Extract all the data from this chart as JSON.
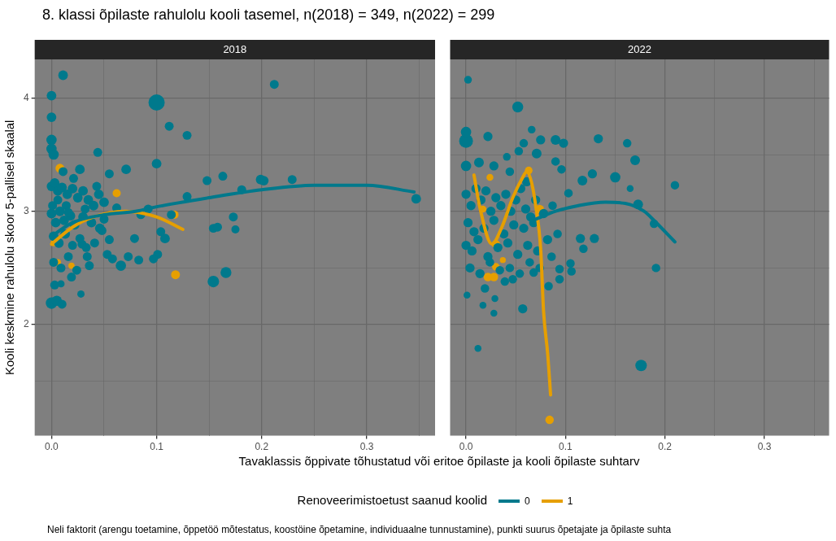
{
  "chart_data": [
    {
      "type": "bubble",
      "title": "8. klassi õpilaste rahulolu kooli tasemel, n(2018) = 349, n(2022) = 299",
      "subtitle": "2018",
      "xlabel": "Tavaklassis õppivate tõhustatud või eritoe õpilaste ja kooli õpilaste suhtarv",
      "ylabel": "Kooli keskmine rahulolu skoor 5-pallisel skaalal",
      "legend_title": "Renoveerimistoetust saanud koolid",
      "legend": "bottom",
      "grid": true,
      "xlim": [
        -0.016,
        0.365
      ],
      "xticks": [
        {
          "value": 0,
          "label": "0.0"
        },
        {
          "value": 0.05,
          "label": null
        },
        0.1,
        {
          "value": 0.15,
          "label": null
        },
        0.2,
        {
          "value": 0.25,
          "label": null
        },
        0.3,
        {
          "value": 0.35,
          "label": null
        }
      ],
      "ylim": [
        1.02,
        4.34
      ],
      "yticks": [
        {
          "value": 1.5,
          "label": null
        },
        2,
        {
          "value": 2.5,
          "label": null
        },
        3,
        {
          "value": 3.5,
          "label": null
        },
        4
      ],
      "annotations": [
        "Neli faktorit (arengu toetamine, õppetöö mõtestatus, koostöine õpetamine, individuaalne tunnustamine), punkti suurus õpetajate ja õpilaste suhta"
      ],
      "series": [
        {
          "color": "#00798c",
          "x": [
            0.011,
            0,
            0,
            0,
            0,
            0.002,
            0.1,
            0.112,
            0.129,
            0.212,
            0.044,
            0.1,
            0.027,
            0.071,
            0.055,
            0.148,
            0.163,
            0.199,
            0.181,
            0.129,
            0.173,
            0.154,
            0.158,
            0.175,
            0.114,
            0.104,
            0.108,
            0.079,
            0.055,
            0.101,
            0.083,
            0.066,
            0.073,
            0.154,
            0.166,
            0.097,
            0.029,
            0.034,
            0.053,
            0.058,
            0,
            0.005,
            0.01,
            0.028,
            0.009,
            0.202,
            0.229,
            0.347,
            0,
            0.003,
            0.006,
            0.01,
            0.015,
            0.02,
            0.025,
            0.03,
            0.035,
            0.04,
            0.045,
            0.05,
            0,
            0.004,
            0.008,
            0.012,
            0.018,
            0.022,
            0.03,
            0.038,
            0.046,
            0.002,
            0.007,
            0.013,
            0.02,
            0.027,
            0.033,
            0.041,
            0.002,
            0.009,
            0.016,
            0.024,
            0.036,
            0.001,
            0.006,
            0.014,
            0.019,
            0.003,
            0.011,
            0.016,
            0.043,
            0.062,
            0.05,
            0.085,
            0.092,
            0.021,
            0.032,
            0.048
          ],
          "values": [
            4.2,
            4.02,
            3.83,
            3.63,
            3.55,
            3.5,
            3.96,
            3.75,
            3.67,
            4.12,
            3.52,
            3.42,
            3.37,
            3.37,
            3.33,
            3.27,
            3.31,
            3.28,
            3.19,
            3.13,
            2.95,
            2.85,
            2.86,
            2.84,
            2.97,
            2.82,
            2.76,
            2.76,
            2.75,
            2.62,
            2.57,
            2.52,
            2.6,
            2.38,
            2.46,
            2.58,
            2.71,
            2.6,
            2.62,
            2.58,
            2.19,
            2.21,
            2.18,
            2.27,
            2.36,
            3.27,
            3.28,
            3.11,
            3.22,
            3.25,
            3.18,
            3.21,
            3.15,
            3.2,
            3.12,
            3.18,
            3.1,
            3.05,
            3.15,
            3.08,
            2.98,
            2.9,
            3,
            2.92,
            2.96,
            2.88,
            2.95,
            2.9,
            2.85,
            2.78,
            2.72,
            2.8,
            2.7,
            2.76,
            2.68,
            2.72,
            2.55,
            2.5,
            2.6,
            2.48,
            2.52,
            3.05,
            3.1,
            3.05,
            2.42,
            2.35,
            3.35,
            2.99,
            3.22,
            3.03,
            2.93,
            2.97,
            3.02,
            3.29,
            3.02,
            2.83
          ],
          "sizes": [
            0.35,
            0.35,
            0.35,
            0.4,
            0.4,
            0.4,
            1,
            0.3,
            0.3,
            0.3,
            0.3,
            0.35,
            0.35,
            0.35,
            0.3,
            0.3,
            0.3,
            0.35,
            0.3,
            0.3,
            0.3,
            0.3,
            0.3,
            0.25,
            0.3,
            0.3,
            0.35,
            0.3,
            0.3,
            0.3,
            0.3,
            0.4,
            0.3,
            0.5,
            0.45,
            0.3,
            0.3,
            0.3,
            0.3,
            0.3,
            0.5,
            0.4,
            0.3,
            0.2,
            0.2,
            0.35,
            0.3,
            0.35,
            0.35,
            0.35,
            0.35,
            0.35,
            0.35,
            0.35,
            0.35,
            0.35,
            0.35,
            0.35,
            0.35,
            0.35,
            0.35,
            0.35,
            0.35,
            0.35,
            0.35,
            0.35,
            0.35,
            0.35,
            0.35,
            0.35,
            0.35,
            0.35,
            0.3,
            0.3,
            0.3,
            0.3,
            0.3,
            0.3,
            0.3,
            0.3,
            0.3,
            0.3,
            0.3,
            0.3,
            0.3,
            0.3,
            0.3,
            0.3,
            0.3,
            0.3,
            0.3,
            0.3,
            0.3,
            0.3,
            0.3,
            0.3
          ]
        },
        {
          "color": "#e69f00",
          "x": [
            0.008,
            0.062,
            0.117,
            0.118,
            0.002,
            0.006,
            0.019
          ],
          "values": [
            3.38,
            3.16,
            2.97,
            2.44,
            2.72,
            2.55,
            2.52
          ],
          "sizes": [
            0.3,
            0.25,
            0.25,
            0.3,
            0.15,
            0.15,
            0.15
          ]
        },
        {
          "type": "line",
          "name": "0",
          "color": "#00798c",
          "x": [
            0,
            0.02,
            0.05,
            0.08,
            0.1,
            0.15,
            0.2,
            0.25,
            0.3,
            0.345
          ],
          "values": [
            2.78,
            2.9,
            2.97,
            3,
            3.04,
            3.12,
            3.19,
            3.23,
            3.23,
            3.17
          ]
        },
        {
          "type": "line",
          "name": "1",
          "color": "#e69f00",
          "x": [
            0,
            0.02,
            0.04,
            0.07,
            0.1,
            0.125
          ],
          "values": [
            2.71,
            2.86,
            2.95,
            3,
            2.95,
            2.84
          ]
        }
      ]
    },
    {
      "type": "bubble",
      "subtitle": "2022",
      "grid": true,
      "tick_labels": "x",
      "xlim": [
        -0.016,
        0.365
      ],
      "xticks": [
        {
          "value": 0,
          "label": "0.0"
        },
        {
          "value": 0.05,
          "label": null
        },
        0.1,
        {
          "value": 0.15,
          "label": null
        },
        0.2,
        {
          "value": 0.25,
          "label": null
        },
        0.3,
        {
          "value": 0.35,
          "label": null
        }
      ],
      "ylim": [
        1.02,
        4.34
      ],
      "yticks": [
        {
          "value": 1.5,
          "label": null
        },
        2,
        {
          "value": 2.5,
          "label": null
        },
        3,
        {
          "value": 3.5,
          "label": null
        },
        4
      ],
      "series": [
        {
          "color": "#00798c",
          "x": [
            0.002,
            0,
            0,
            0.022,
            0.052,
            0.066,
            0.075,
            0.09,
            0.098,
            0.133,
            0.162,
            0.17,
            0.071,
            0.09,
            0.053,
            0.058,
            0.041,
            0,
            0.013,
            0.028,
            0.044,
            0.061,
            0.15,
            0.165,
            0.21,
            0.173,
            0.189,
            0.191,
            0.117,
            0.127,
            0.096,
            0.103,
            0.087,
            0.115,
            0.129,
            0.118,
            0.105,
            0.106,
            0.094,
            0.094,
            0.083,
            0.057,
            0.029,
            0.017,
            0.028,
            0.001,
            0.012,
            0.176,
            0,
            0.005,
            0.01,
            0.015,
            0.02,
            0.025,
            0.03,
            0.035,
            0.04,
            0.045,
            0.05,
            0.055,
            0.06,
            0.065,
            0.07,
            0.002,
            0.008,
            0.018,
            0.028,
            0.038,
            0.048,
            0.058,
            0.068,
            0.078,
            0,
            0.006,
            0.012,
            0.022,
            0.032,
            0.042,
            0.052,
            0.062,
            0.072,
            0.082,
            0.004,
            0.014,
            0.024,
            0.034,
            0.044,
            0.054,
            0.064,
            0.074,
            0.019,
            0.039,
            0.086,
            0.092,
            0.047,
            0.068
          ],
          "values": [
            4.16,
            3.62,
            3.7,
            3.66,
            3.92,
            3.72,
            3.63,
            3.63,
            3.6,
            3.64,
            3.6,
            3.45,
            3.51,
            3.44,
            3.53,
            3.6,
            3.48,
            3.4,
            3.43,
            3.4,
            3.35,
            3.26,
            3.3,
            3.2,
            3.23,
            3.06,
            2.89,
            2.5,
            3.27,
            3.33,
            3.37,
            3.16,
            3.05,
            2.76,
            2.76,
            2.67,
            2.54,
            2.47,
            2.49,
            2.4,
            2.34,
            2.14,
            2.23,
            2.17,
            2.1,
            2.26,
            1.79,
            1.64,
            3.15,
            3.05,
            3.2,
            3.1,
            3.18,
            3,
            3.12,
            3.05,
            3.15,
            3,
            3.1,
            3.2,
            3.02,
            2.95,
            3.1,
            2.9,
            2.82,
            2.85,
            2.92,
            2.8,
            2.88,
            2.85,
            2.9,
            2.98,
            2.7,
            2.65,
            2.75,
            2.6,
            2.68,
            2.72,
            2.62,
            2.7,
            2.65,
            2.75,
            2.5,
            2.45,
            2.55,
            2.48,
            2.5,
            2.45,
            2.55,
            2.5,
            2.32,
            2.38,
            2.6,
            2.8,
            2.4,
            2.46
          ],
          "sizes": [
            0.31,
            1,
            0.56,
            0.44,
            0.63,
            0.31,
            0.44,
            0.5,
            0.44,
            0.44,
            0.38,
            0.5,
            0.5,
            0.38,
            0.38,
            0.38,
            0.31,
            0.56,
            0.5,
            0.44,
            0.38,
            0.44,
            0.56,
            0.25,
            0.38,
            0.5,
            0.38,
            0.38,
            0.5,
            0.44,
            0.38,
            0.38,
            0.38,
            0.44,
            0.44,
            0.38,
            0.38,
            0.38,
            0.38,
            0.38,
            0.38,
            0.44,
            0.25,
            0.25,
            0.25,
            0.25,
            0.25,
            0.69,
            0.44,
            0.44,
            0.44,
            0.44,
            0.44,
            0.44,
            0.44,
            0.44,
            0.44,
            0.44,
            0.44,
            0.44,
            0.44,
            0.44,
            0.44,
            0.44,
            0.44,
            0.44,
            0.44,
            0.44,
            0.44,
            0.44,
            0.44,
            0.44,
            0.44,
            0.44,
            0.44,
            0.44,
            0.44,
            0.44,
            0.44,
            0.44,
            0.44,
            0.44,
            0.44,
            0.44,
            0.38,
            0.38,
            0.38,
            0.38,
            0.38,
            0.38,
            0.38,
            0.38,
            0.38,
            0.38,
            0.38,
            0.38
          ]
        },
        {
          "color": "#e69f00",
          "x": [
            0.024,
            0.063,
            0.074,
            0.017,
            0.03,
            0.03,
            0.022,
            0.028,
            0.037,
            0.084
          ],
          "values": [
            3.3,
            3.36,
            3.02,
            3.02,
            2.71,
            2.51,
            2.42,
            2.42,
            2.57,
            1.16
          ],
          "sizes": [
            0.25,
            0.31,
            0.38,
            0.25,
            0.38,
            0.31,
            0.38,
            0.38,
            0.19,
            0.38
          ]
        },
        {
          "type": "line",
          "color": "#00798c",
          "x": [
            0.07,
            0.09,
            0.113,
            0.14,
            0.16,
            0.179,
            0.19,
            0.21
          ],
          "values": [
            2.93,
            3,
            3.05,
            3.08,
            3.07,
            3,
            2.91,
            2.73
          ]
        },
        {
          "type": "line",
          "color": "#e69f00",
          "x": [
            0.008,
            0.014,
            0.026,
            0.036,
            0.047,
            0.057,
            0.061,
            0.066,
            0.07,
            0.075,
            0.078,
            0.082,
            0.085
          ],
          "values": [
            3.32,
            3.03,
            2.71,
            2.86,
            3.12,
            3.3,
            3.35,
            3.25,
            3.05,
            2.67,
            2.11,
            1.75,
            1.38
          ]
        }
      ]
    }
  ]
}
